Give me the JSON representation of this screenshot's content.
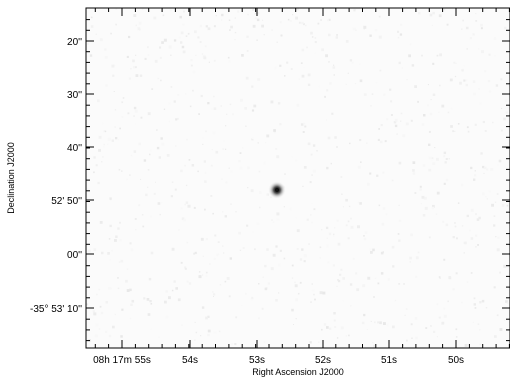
{
  "figure": {
    "xlabel": "Right Ascension J2000",
    "ylabel": "Declination J2000",
    "x_ticks": [
      {
        "label": "08h 17m 55s"
      },
      {
        "label": "54s"
      },
      {
        "label": "53s"
      },
      {
        "label": "52s"
      },
      {
        "label": "51s"
      },
      {
        "label": "50s"
      }
    ],
    "y_ticks": [
      {
        "label": "20''"
      },
      {
        "label": "30''"
      },
      {
        "label": "40''"
      },
      {
        "label": "52' 50''"
      },
      {
        "label": "00''"
      },
      {
        "label": "-35° 53' 10''"
      }
    ],
    "colors": {
      "background": "#fbfbfb",
      "source": "#1a1a1a",
      "axis": "#000000"
    }
  }
}
